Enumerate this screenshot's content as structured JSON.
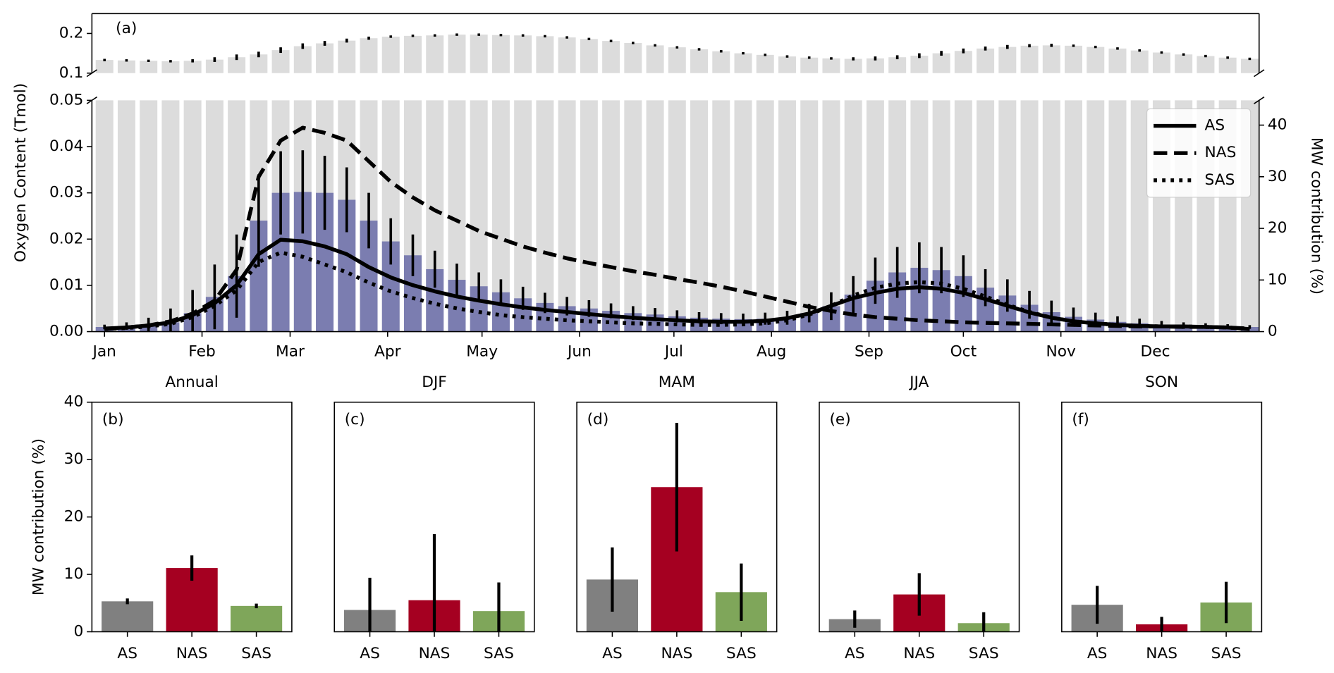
{
  "chart_data": [
    {
      "type": "combo",
      "label": "(a)",
      "ylabel": "Oxygen Content (Tmol)",
      "y2label": "MW contribution (%)",
      "x": [
        0,
        7,
        14,
        21,
        28,
        35,
        42,
        49,
        56,
        63,
        70,
        77,
        84,
        91,
        98,
        105,
        112,
        119,
        126,
        133,
        140,
        147,
        154,
        161,
        168,
        175,
        182,
        189,
        196,
        203,
        210,
        217,
        224,
        231,
        238,
        245,
        252,
        259,
        266,
        273,
        280,
        287,
        294,
        301,
        308,
        315,
        322,
        329,
        336,
        343,
        350,
        357,
        364
      ],
      "xlim": [
        -4,
        367
      ],
      "xticks": [
        {
          "value": 0,
          "label": "Jan"
        },
        {
          "value": 31,
          "label": "Feb"
        },
        {
          "value": 59,
          "label": "Mar"
        },
        {
          "value": 90,
          "label": "Apr"
        },
        {
          "value": 120,
          "label": "May"
        },
        {
          "value": 151,
          "label": "Jun"
        },
        {
          "value": 181,
          "label": "Jul"
        },
        {
          "value": 212,
          "label": "Aug"
        },
        {
          "value": 243,
          "label": "Sep"
        },
        {
          "value": 273,
          "label": "Oct"
        },
        {
          "value": 304,
          "label": "Nov"
        },
        {
          "value": 334,
          "label": "Dec"
        }
      ],
      "ylim_upper": [
        0.1,
        0.25
      ],
      "yticks_upper": [
        0.1,
        0.2
      ],
      "ylim": [
        0,
        0.05
      ],
      "yticks": [
        {
          "value": 0,
          "label": "0.00"
        },
        0.01,
        0.02,
        0.03,
        0.04,
        0.05
      ],
      "y2lim": [
        0,
        44.8
      ],
      "y2ticks": [
        0,
        10,
        20,
        30,
        40
      ],
      "legend": "upper right",
      "bars_total": {
        "color": "#dcdcdc",
        "values": [
          0.133,
          0.132,
          0.131,
          0.13,
          0.131,
          0.134,
          0.14,
          0.147,
          0.158,
          0.168,
          0.175,
          0.182,
          0.188,
          0.192,
          0.194,
          0.195,
          0.197,
          0.197,
          0.196,
          0.195,
          0.193,
          0.19,
          0.186,
          0.181,
          0.176,
          0.17,
          0.165,
          0.16,
          0.155,
          0.15,
          0.146,
          0.142,
          0.139,
          0.137,
          0.136,
          0.137,
          0.14,
          0.144,
          0.15,
          0.156,
          0.162,
          0.166,
          0.169,
          0.17,
          0.169,
          0.166,
          0.162,
          0.157,
          0.152,
          0.147,
          0.143,
          0.139,
          0.136
        ],
        "errors": [
          0.003,
          0.003,
          0.003,
          0.003,
          0.004,
          0.006,
          0.007,
          0.007,
          0.007,
          0.007,
          0.006,
          0.005,
          0.004,
          0.003,
          0.003,
          0.003,
          0.003,
          0.003,
          0.003,
          0.003,
          0.003,
          0.003,
          0.003,
          0.003,
          0.003,
          0.003,
          0.003,
          0.003,
          0.003,
          0.003,
          0.003,
          0.003,
          0.003,
          0.003,
          0.004,
          0.005,
          0.005,
          0.006,
          0.006,
          0.006,
          0.005,
          0.005,
          0.004,
          0.004,
          0.003,
          0.003,
          0.003,
          0.003,
          0.003,
          0.003,
          0.003,
          0.003,
          0.003
        ]
      },
      "bars_mw": {
        "color": "#7b7db0",
        "values": [
          0.001,
          0.0012,
          0.0015,
          0.002,
          0.004,
          0.0075,
          0.012,
          0.024,
          0.03,
          0.0302,
          0.03,
          0.0285,
          0.024,
          0.0195,
          0.0165,
          0.0135,
          0.0112,
          0.0098,
          0.0085,
          0.0072,
          0.0062,
          0.0055,
          0.005,
          0.0045,
          0.004,
          0.0037,
          0.0033,
          0.003,
          0.0028,
          0.0027,
          0.0028,
          0.003,
          0.004,
          0.0055,
          0.008,
          0.011,
          0.0128,
          0.0138,
          0.0133,
          0.012,
          0.0095,
          0.0078,
          0.0058,
          0.0042,
          0.0032,
          0.0026,
          0.0021,
          0.0018,
          0.0015,
          0.0013,
          0.0012,
          0.0011,
          0.001
        ],
        "errors": [
          0.0005,
          0.0008,
          0.0015,
          0.003,
          0.005,
          0.007,
          0.009,
          0.01,
          0.009,
          0.009,
          0.008,
          0.007,
          0.006,
          0.005,
          0.0045,
          0.004,
          0.0035,
          0.003,
          0.0028,
          0.0025,
          0.0022,
          0.002,
          0.0018,
          0.0016,
          0.0015,
          0.0014,
          0.0013,
          0.0012,
          0.0012,
          0.0012,
          0.0013,
          0.0015,
          0.002,
          0.003,
          0.004,
          0.005,
          0.0055,
          0.0055,
          0.005,
          0.0045,
          0.004,
          0.0035,
          0.003,
          0.0025,
          0.002,
          0.0015,
          0.0012,
          0.001,
          0.0008,
          0.0007,
          0.0006,
          0.0005,
          0.0004
        ]
      },
      "series": [
        {
          "name": "AS",
          "color": "#000000",
          "dash": "solid",
          "axis": "y2",
          "values": [
            0.6,
            0.8,
            1.2,
            1.8,
            3.2,
            5.5,
            9,
            15,
            17.8,
            17.5,
            16.5,
            15,
            12.5,
            10.5,
            9,
            7.8,
            6.8,
            6,
            5.3,
            4.7,
            4.2,
            3.8,
            3.4,
            3,
            2.7,
            2.4,
            2.2,
            2,
            1.9,
            1.9,
            2.1,
            2.6,
            3.5,
            5,
            6.5,
            7.5,
            8.3,
            8.6,
            8.3,
            7.5,
            6.3,
            5,
            3.7,
            2.7,
            2,
            1.6,
            1.3,
            1.1,
            1,
            1,
            0.9,
            0.8,
            0.5
          ]
        },
        {
          "name": "NAS",
          "color": "#000000",
          "dash": "dashed",
          "axis": "y2",
          "values": [
            0.5,
            0.8,
            1.2,
            2,
            3.5,
            6,
            12,
            30,
            37,
            39.5,
            38.5,
            37,
            33,
            29,
            26,
            23.5,
            21.5,
            19.5,
            18,
            16.5,
            15.3,
            14.2,
            13.3,
            12.5,
            11.7,
            11,
            10.2,
            9.5,
            8.7,
            7.8,
            6.8,
            5.8,
            4.8,
            4,
            3.3,
            2.8,
            2.5,
            2.2,
            2,
            1.8,
            1.7,
            1.6,
            1.5,
            1.4,
            1.3,
            1.2,
            1.1,
            1,
            1,
            0.9,
            0.9,
            0.8,
            0.6
          ]
        },
        {
          "name": "SAS",
          "color": "#000000",
          "dash": "dotted",
          "axis": "y2",
          "values": [
            0.5,
            0.7,
            1,
            1.5,
            2.8,
            5,
            8,
            13.5,
            15.3,
            14.5,
            13,
            11.5,
            9.5,
            7.8,
            6.5,
            5.4,
            4.5,
            3.8,
            3.2,
            2.8,
            2.5,
            2.2,
            2,
            1.8,
            1.6,
            1.5,
            1.4,
            1.3,
            1.3,
            1.4,
            1.6,
            2.2,
            3.3,
            5,
            7,
            8.5,
            9.3,
            9.6,
            9.3,
            8.3,
            6.8,
            5.2,
            3.8,
            2.7,
            2,
            1.6,
            1.3,
            1.1,
            1,
            1,
            0.9,
            0.8,
            0.5
          ]
        }
      ]
    },
    {
      "type": "bar",
      "title": "Annual",
      "label": "(b)",
      "ylabel": "MW contribution (%)",
      "categories": [
        "AS",
        "NAS",
        "SAS"
      ],
      "colors": [
        "#808080",
        "#a50021",
        "#7fa65a"
      ],
      "values": [
        5.3,
        11.1,
        4.5
      ],
      "errors": [
        0.5,
        2.2,
        0.4
      ],
      "ylim": [
        0,
        40
      ],
      "yticks": [
        0,
        10,
        20,
        30,
        40
      ]
    },
    {
      "type": "bar",
      "title": "DJF",
      "label": "(c)",
      "categories": [
        "AS",
        "NAS",
        "SAS"
      ],
      "colors": [
        "#808080",
        "#a50021",
        "#7fa65a"
      ],
      "values": [
        3.8,
        5.5,
        3.6
      ],
      "errors": [
        5.6,
        11.5,
        5.0
      ],
      "ylim": [
        0,
        40
      ]
    },
    {
      "type": "bar",
      "title": "MAM",
      "label": "(d)",
      "categories": [
        "AS",
        "NAS",
        "SAS"
      ],
      "colors": [
        "#808080",
        "#a50021",
        "#7fa65a"
      ],
      "values": [
        9.1,
        25.2,
        6.9
      ],
      "errors": [
        5.6,
        11.2,
        5.0
      ],
      "ylim": [
        0,
        40
      ]
    },
    {
      "type": "bar",
      "title": "JJA",
      "label": "(e)",
      "categories": [
        "AS",
        "NAS",
        "SAS"
      ],
      "colors": [
        "#808080",
        "#a50021",
        "#7fa65a"
      ],
      "values": [
        2.2,
        6.5,
        1.5
      ],
      "errors": [
        1.5,
        3.7,
        1.9
      ],
      "ylim": [
        0,
        40
      ]
    },
    {
      "type": "bar",
      "title": "SON",
      "label": "(f)",
      "categories": [
        "AS",
        "NAS",
        "SAS"
      ],
      "colors": [
        "#808080",
        "#a50021",
        "#7fa65a"
      ],
      "values": [
        4.7,
        1.3,
        5.1
      ],
      "errors": [
        3.3,
        1.3,
        3.6
      ],
      "ylim": [
        0,
        40
      ]
    }
  ]
}
